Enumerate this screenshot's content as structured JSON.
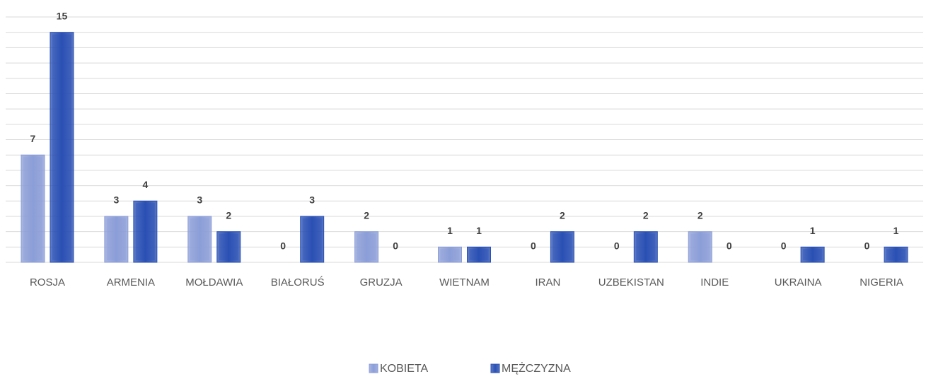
{
  "chart_data": {
    "type": "bar",
    "categories": [
      "ROSJA",
      "ARMENIA",
      "MOŁDAWIA",
      "BIAŁORUŚ",
      "GRUZJA",
      "WIETNAM",
      "IRAN",
      "UZBEKISTAN",
      "INDIE",
      "UKRAINA",
      "NIGERIA"
    ],
    "series": [
      {
        "name": "KOBIETA",
        "color": "#8c9ed8",
        "values": [
          7,
          3,
          3,
          0,
          2,
          1,
          0,
          0,
          2,
          0,
          0
        ]
      },
      {
        "name": "MĘŻCZYZNA",
        "color": "#2a50b4",
        "values": [
          15,
          4,
          2,
          3,
          0,
          1,
          2,
          2,
          0,
          1,
          1
        ]
      }
    ],
    "ylim": [
      0,
      16
    ],
    "yticks": [
      0,
      1,
      2,
      3,
      4,
      5,
      6,
      7,
      8,
      9,
      10,
      11,
      12,
      13,
      14,
      15,
      16
    ],
    "grid": true,
    "legend": "bottom"
  }
}
